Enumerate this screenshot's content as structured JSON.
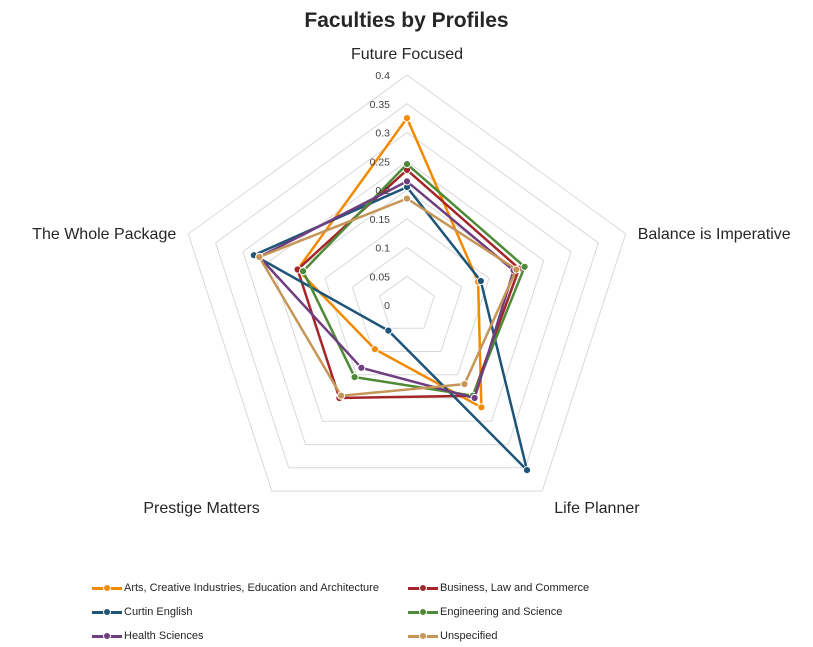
{
  "chart_data": {
    "type": "radar",
    "title": "Faculties by Profiles",
    "axes": [
      "Future Focused",
      "Balance is Imperative",
      "Life Planner",
      "Prestige Matters",
      "The Whole Package"
    ],
    "ticks": [
      "0",
      "0.05",
      "0.1",
      "0.15",
      "0.2",
      "0.25",
      "0.3",
      "0.35",
      "0.4"
    ],
    "rlim": [
      0,
      0.4
    ],
    "grid": true,
    "legend_position": "bottom",
    "series": [
      {
        "name": "Arts, Creative Industries, Education and Architecture",
        "color": "#F28A00",
        "values": [
          0.325,
          0.13,
          0.22,
          0.095,
          0.2
        ]
      },
      {
        "name": "Business, Law and Commerce",
        "color": "#A5262A",
        "values": [
          0.235,
          0.205,
          0.195,
          0.2,
          0.2
        ]
      },
      {
        "name": "Curtin English",
        "color": "#1E5478",
        "values": [
          0.205,
          0.135,
          0.355,
          0.055,
          0.28
        ]
      },
      {
        "name": "Engineering and Science",
        "color": "#4E8A37",
        "values": [
          0.245,
          0.215,
          0.195,
          0.155,
          0.19
        ]
      },
      {
        "name": "Health Sciences",
        "color": "#6E3E7E",
        "values": [
          0.215,
          0.195,
          0.2,
          0.135,
          0.27
        ]
      },
      {
        "name": "Unspecified",
        "color": "#C69659",
        "values": [
          0.185,
          0.2,
          0.17,
          0.195,
          0.27
        ]
      }
    ]
  }
}
